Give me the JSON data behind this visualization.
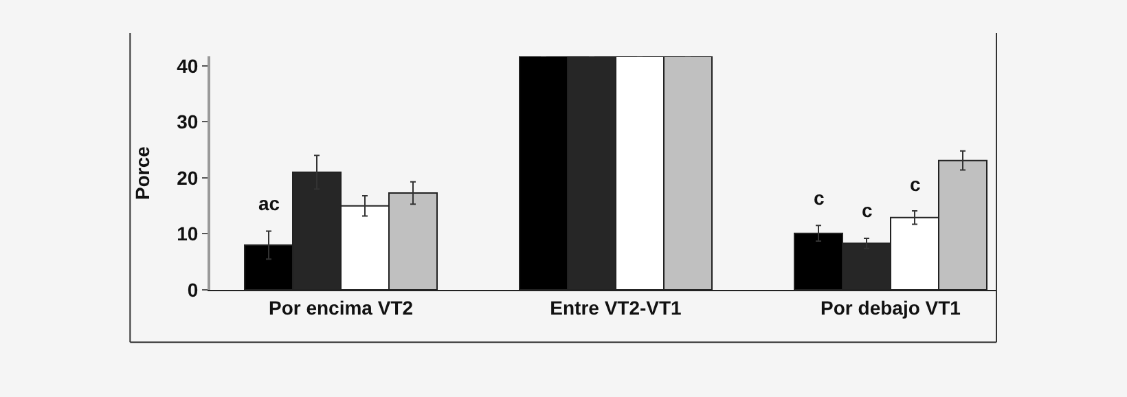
{
  "chart_data": {
    "type": "bar",
    "ylabel": "Porce",
    "categories": [
      "Por encima VT2",
      "Entre VT2-VT1",
      "Por debajo VT1"
    ],
    "series": [
      {
        "color": "#000000",
        "values": [
          8,
          41.7,
          10.1
        ],
        "errors": [
          2.5,
          null,
          1.4
        ],
        "value_labels": [
          "ac",
          null,
          "c"
        ]
      },
      {
        "color": "#262626",
        "values": [
          21,
          41.7,
          8.3
        ],
        "errors": [
          3,
          null,
          0.9
        ],
        "value_labels": [
          null,
          null,
          "c"
        ]
      },
      {
        "color": "#ffffff",
        "values": [
          15,
          41.7,
          12.9
        ],
        "errors": [
          1.8,
          null,
          1.2
        ],
        "value_labels": [
          null,
          null,
          "c"
        ]
      },
      {
        "color": "#c0c0c0",
        "values": [
          17.3,
          41.7,
          23.1
        ],
        "errors": [
          2,
          null,
          1.7
        ],
        "value_labels": [
          null,
          null,
          null
        ]
      }
    ],
    "ylim": [
      0,
      41.7
    ],
    "yticks": [
      0,
      10,
      20,
      30,
      40
    ],
    "grid": false
  }
}
